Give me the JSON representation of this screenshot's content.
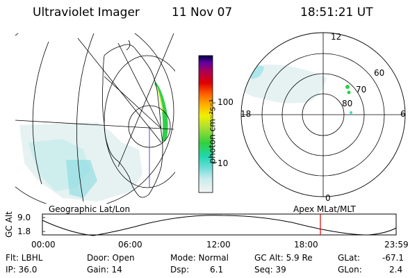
{
  "header": {
    "instrument": "Ultraviolet Imager",
    "date": "11 Nov 07",
    "time": "18:51:21 UT"
  },
  "colorbar": {
    "label": "photon cm⁻²s⁻¹",
    "ticks": [
      "100",
      "10"
    ]
  },
  "polar_plot": {
    "mlt_labels": [
      "12",
      "18",
      "6",
      "0"
    ],
    "mlat_labels": [
      "60",
      "70",
      "80"
    ]
  },
  "projection_labels": {
    "left": "Geographic Lat/Lon",
    "right": "Apex MLat/MLT"
  },
  "altitude_plot": {
    "axis_title": "GC Alt",
    "y_ticks": [
      "9.0",
      "1.8"
    ],
    "x_ticks": [
      "00:00",
      "06:00",
      "12:00",
      "18:00",
      "23:59"
    ],
    "marker_time": "18:51",
    "line_color": "#000000",
    "marker_color": "#d40000"
  },
  "info": {
    "flt": "Flt: LBHL",
    "ip": "IP: 36.0",
    "door": "Door: Open",
    "gain": "Gain: 14",
    "mode": "Mode: Normal",
    "dsp_label": "Dsp:",
    "dsp_value": "6.1",
    "gcalt": "GC Alt: 5.9 Re",
    "seq": "Seq: 39",
    "glat_label": "GLat:",
    "glat_value": "-67.1",
    "glon_label": "GLon:",
    "glon_value": "2.4"
  }
}
